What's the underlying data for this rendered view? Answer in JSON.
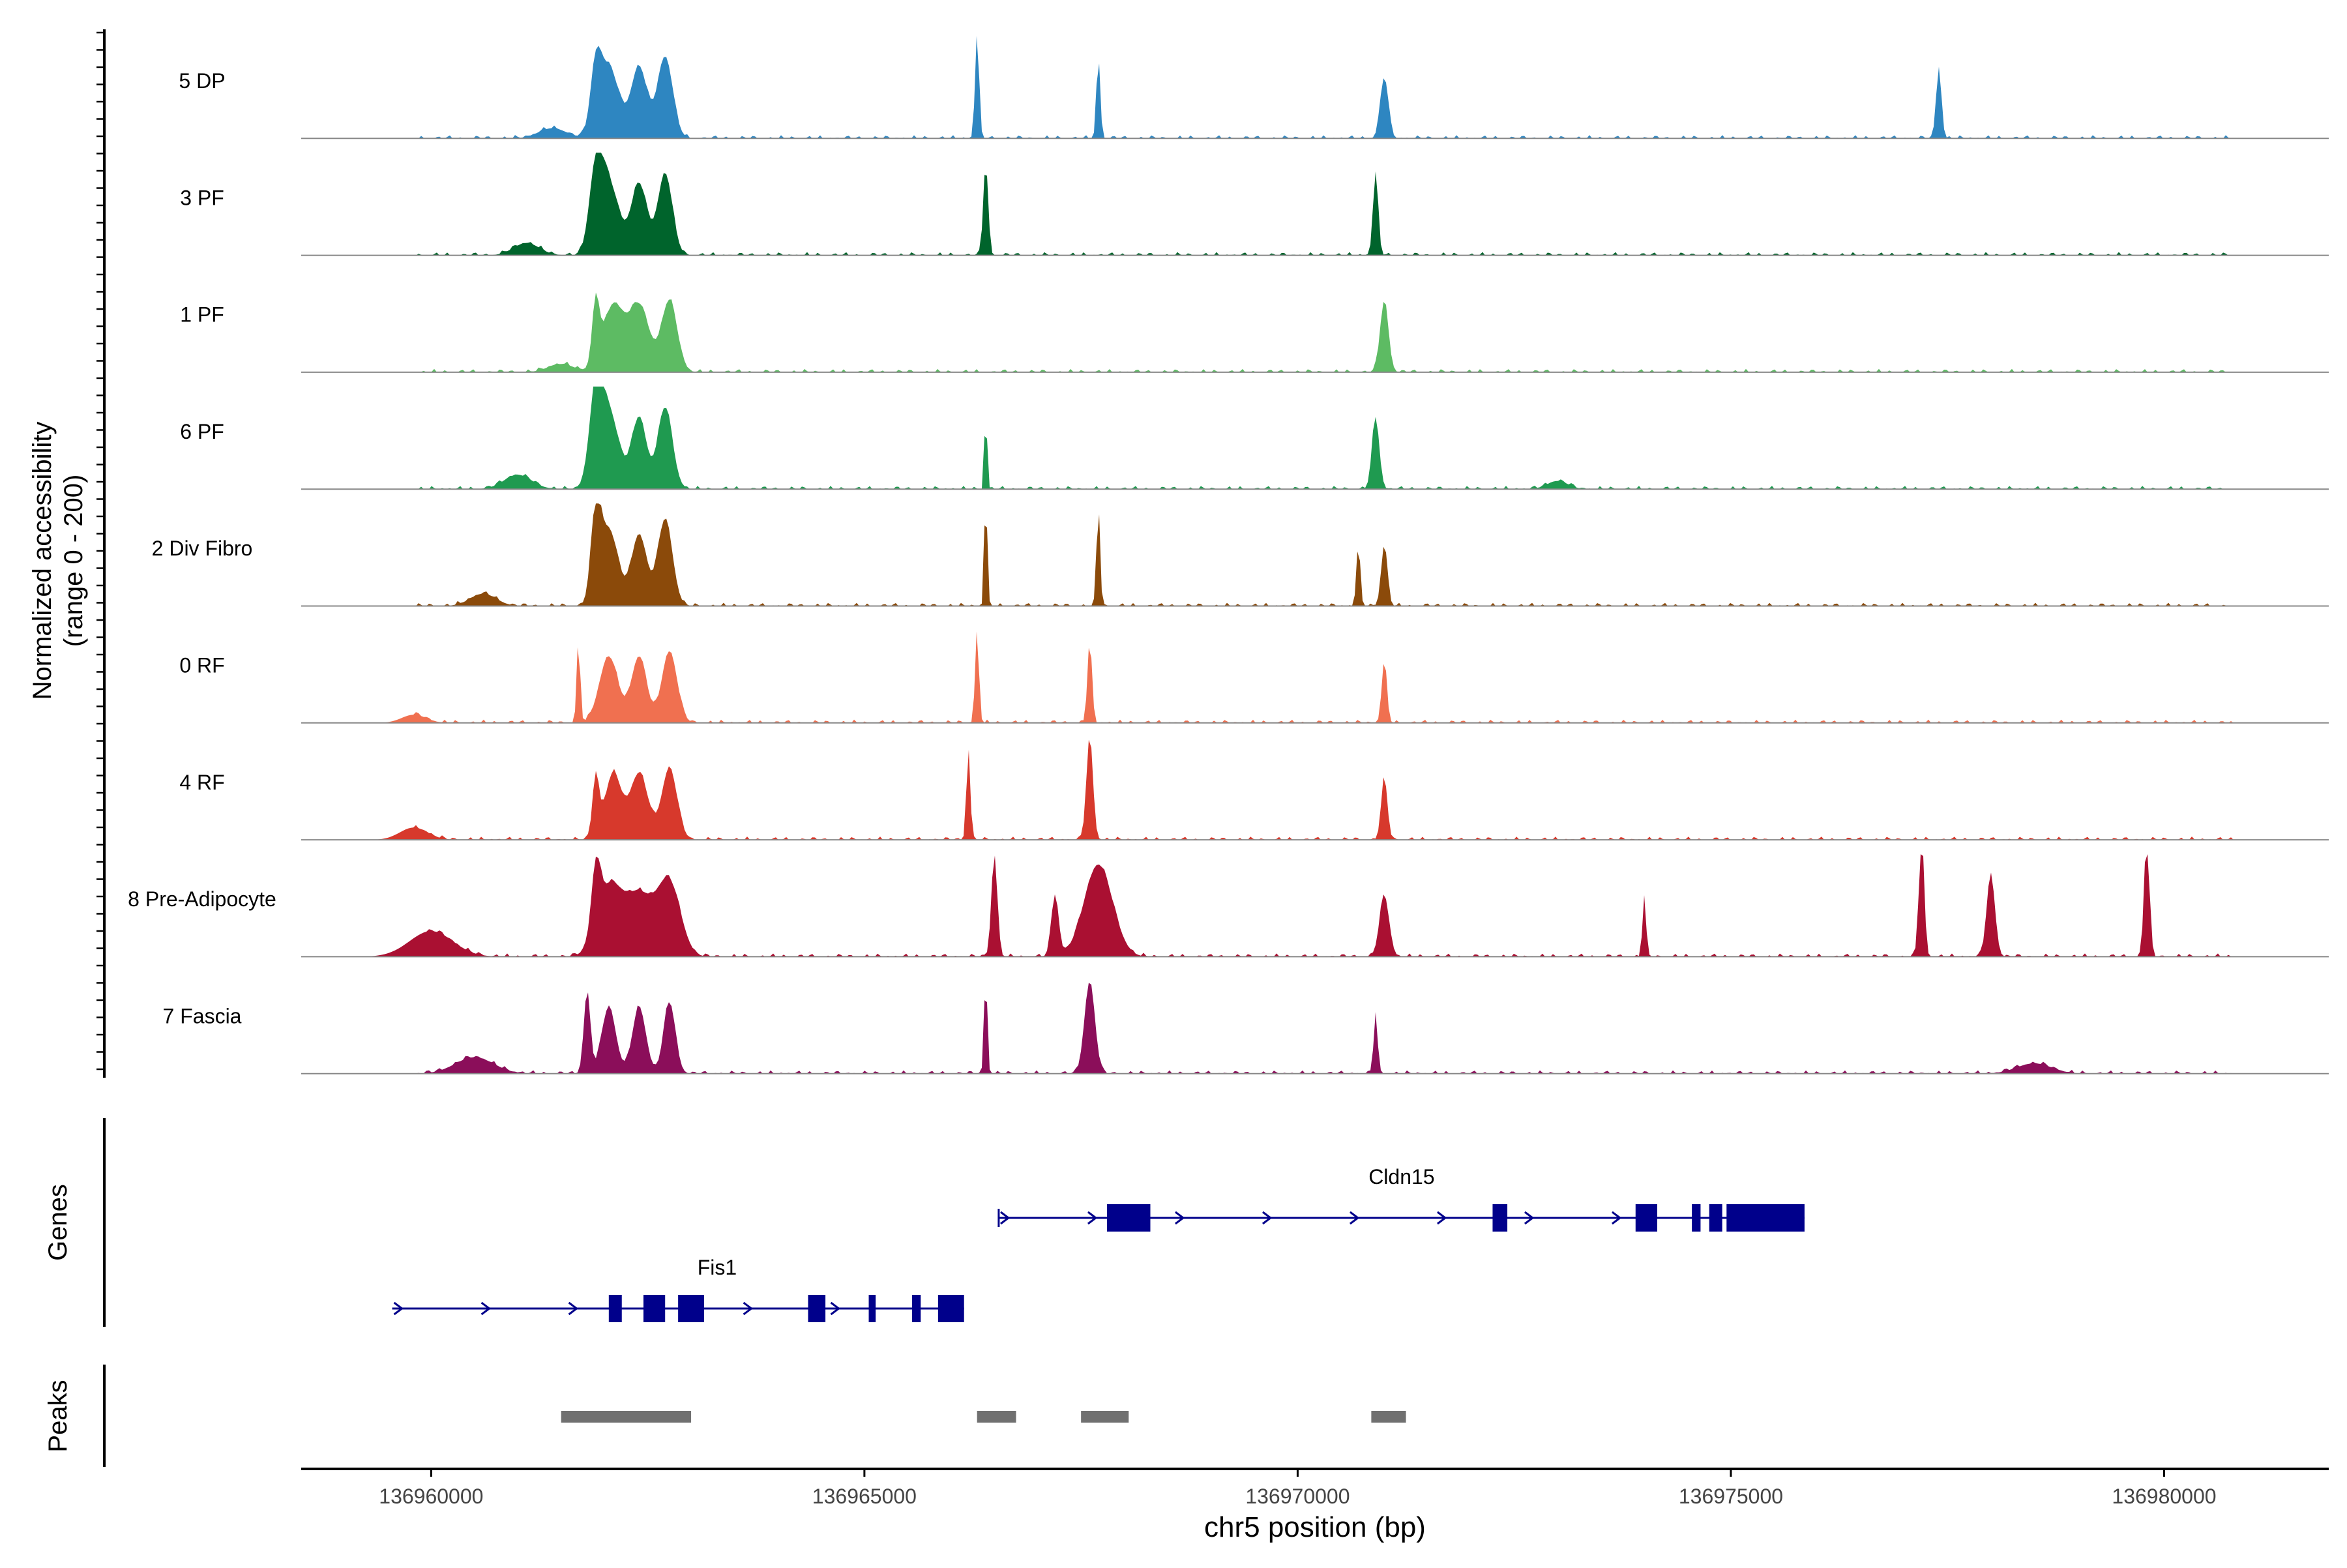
{
  "chart_data": {
    "type": "area",
    "xlabel": "chr5 position (bp)",
    "ylabel_line1": "Normalized accessibility",
    "ylabel_line2": "(range 0 - 200)",
    "xlim": [
      136958500,
      136981900
    ],
    "xticks": [
      136960000,
      136965000,
      136970000,
      136975000,
      136980000
    ],
    "xtick_labels": [
      "136960000",
      "136965000",
      "136970000",
      "136975000",
      "136980000"
    ],
    "ylim": [
      0,
      200
    ],
    "series": [
      {
        "name": "5 DP",
        "color": "#2E86C1",
        "peaks": [
          [
            136961400,
            160,
            10
          ],
          [
            136961900,
            60,
            55
          ],
          [
            136962050,
            118,
            70
          ],
          [
            136962400,
            92,
            70
          ],
          [
            136962700,
            88,
            80
          ],
          [
            136966300,
            22,
            110
          ],
          [
            136967700,
            22,
            80
          ],
          [
            136971000,
            46,
            60
          ],
          [
            136977400,
            30,
            70
          ]
        ]
      },
      {
        "name": "3 PF",
        "color": "#00642C",
        "peaks": [
          [
            136961100,
            150,
            12
          ],
          [
            136961900,
            75,
            70
          ],
          [
            136962050,
            118,
            70
          ],
          [
            136962400,
            92,
            70
          ],
          [
            136962700,
            84,
            80
          ],
          [
            136966400,
            28,
            90
          ],
          [
            136970900,
            30,
            80
          ]
        ]
      },
      {
        "name": "1 PF",
        "color": "#5DBB63",
        "peaks": [
          [
            136961500,
            150,
            8
          ],
          [
            136961900,
            42,
            60
          ],
          [
            136962100,
            118,
            65
          ],
          [
            136962400,
            118,
            65
          ],
          [
            136962750,
            90,
            70
          ],
          [
            136971000,
            48,
            70
          ]
        ]
      },
      {
        "name": "6 PF",
        "color": "#1F9A50",
        "peaks": [
          [
            136961000,
            160,
            14
          ],
          [
            136961900,
            75,
            80
          ],
          [
            136962050,
            118,
            75
          ],
          [
            136962400,
            85,
            70
          ],
          [
            136962700,
            85,
            80
          ],
          [
            136966400,
            14,
            90
          ],
          [
            136970900,
            42,
            70
          ],
          [
            136973000,
            120,
            8
          ]
        ]
      },
      {
        "name": "2 Div Fibro",
        "color": "#8B4A0A",
        "peaks": [
          [
            136960600,
            150,
            12
          ],
          [
            136961900,
            55,
            80
          ],
          [
            136962050,
            108,
            75
          ],
          [
            136962400,
            88,
            70
          ],
          [
            136962700,
            85,
            85
          ],
          [
            136966400,
            16,
            120
          ],
          [
            136967700,
            20,
            100
          ],
          [
            136970700,
            22,
            60
          ],
          [
            136971000,
            36,
            60
          ]
        ]
      },
      {
        "name": "0 RF",
        "color": "#F07050",
        "peaks": [
          [
            136959800,
            140,
            8
          ],
          [
            136961700,
            20,
            80
          ],
          [
            136962050,
            108,
            65
          ],
          [
            136962400,
            88,
            65
          ],
          [
            136962750,
            88,
            70
          ],
          [
            136966300,
            22,
            90
          ],
          [
            136967600,
            26,
            80
          ],
          [
            136971000,
            30,
            60
          ]
        ]
      },
      {
        "name": "4 RF",
        "color": "#D7392C",
        "peaks": [
          [
            136959800,
            160,
            12
          ],
          [
            136961900,
            38,
            60
          ],
          [
            136962100,
            95,
            65
          ],
          [
            136962400,
            105,
            65
          ],
          [
            136962750,
            88,
            70
          ],
          [
            136966200,
            22,
            90
          ],
          [
            136967600,
            38,
            100
          ],
          [
            136971000,
            36,
            60
          ]
        ]
      },
      {
        "name": "8 Pre-Adipocyte",
        "color": "#AA1032",
        "peaks": [
          [
            136960000,
            250,
            25
          ],
          [
            136961900,
            50,
            60
          ],
          [
            136962050,
            140,
            65
          ],
          [
            136962400,
            168,
            60
          ],
          [
            136962750,
            130,
            70
          ],
          [
            136966500,
            34,
            100
          ],
          [
            136967200,
            42,
            60
          ],
          [
            136967700,
            165,
            90
          ],
          [
            136971000,
            55,
            60
          ],
          [
            136974000,
            20,
            60
          ],
          [
            136977200,
            30,
            120
          ],
          [
            136978000,
            48,
            80
          ],
          [
            136979800,
            30,
            120
          ]
        ]
      },
      {
        "name": "7 Fascia",
        "color": "#8B0E5A",
        "peaks": [
          [
            136960500,
            220,
            16
          ],
          [
            136961800,
            38,
            80
          ],
          [
            136962050,
            82,
            65
          ],
          [
            136962400,
            78,
            65
          ],
          [
            136962750,
            68,
            70
          ],
          [
            136966400,
            18,
            100
          ],
          [
            136967600,
            60,
            90
          ],
          [
            136970900,
            22,
            60
          ],
          [
            136978500,
            200,
            10
          ]
        ]
      }
    ],
    "genes": [
      {
        "name": "Cldn15",
        "strand": "+",
        "start": 136966550,
        "end": 136975850,
        "exons": [
          [
            136967800,
            136968300
          ],
          [
            136972250,
            136972420
          ],
          [
            136973900,
            136974150
          ],
          [
            136974550,
            136974650
          ],
          [
            136974750,
            136974900
          ],
          [
            136974950,
            136975850
          ]
        ]
      },
      {
        "name": "Fis1",
        "strand": "+",
        "start": 136959550,
        "end": 136966150,
        "exons": [
          [
            136962050,
            136962200
          ],
          [
            136962450,
            136962700
          ],
          [
            136962850,
            136963150
          ],
          [
            136964350,
            136964550
          ],
          [
            136965050,
            136965130
          ],
          [
            136965550,
            136965650
          ],
          [
            136965850,
            136966150
          ]
        ]
      }
    ],
    "peaks_track": [
      [
        136961500,
        136963000
      ],
      [
        136966300,
        136966750
      ],
      [
        136967500,
        136968050
      ],
      [
        136970850,
        136971250
      ]
    ],
    "track_labels": {
      "genes": "Genes",
      "peaks": "Peaks"
    }
  }
}
